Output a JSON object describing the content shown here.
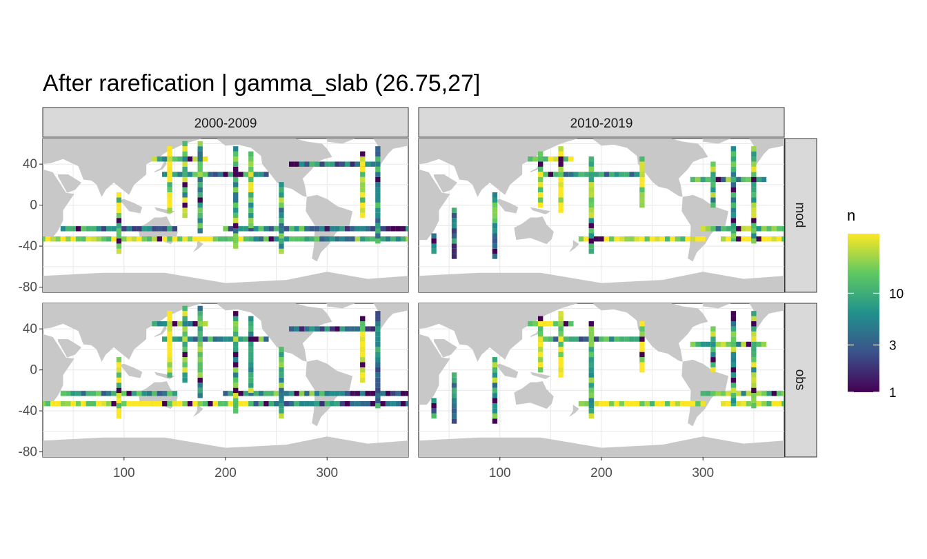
{
  "chart_data": {
    "type": "heatmap",
    "title": "After rarefication | gamma_slab (26.75,27]",
    "xlabel": "",
    "ylabel": "",
    "x_range": [
      20,
      380
    ],
    "y_range": [
      -85,
      65
    ],
    "x_ticks": [
      100,
      200,
      300
    ],
    "y_ticks": [
      40,
      0,
      -40,
      -80
    ],
    "grid": true,
    "facet_columns": [
      "2000-2009",
      "2010-2019"
    ],
    "facet_rows": [
      "mod",
      "obs"
    ],
    "legend": {
      "title": "n",
      "position": "right",
      "scale": "log10",
      "palette": "viridis",
      "ticks": [
        1,
        3,
        10
      ],
      "range": [
        1,
        40
      ]
    },
    "colors": {
      "land": "#c8c8c8",
      "strip": "#d9d9d9",
      "viridis": [
        "#440154",
        "#3b528b",
        "#21918c",
        "#5ec962",
        "#fde725"
      ]
    },
    "cell_size_deg": [
      5,
      5
    ],
    "panels": [
      {
        "period": "2000-2009",
        "source": "mod",
        "tracks": [
          {
            "lon": [
              20,
              130
            ],
            "lat": [
              -33,
              -33
            ],
            "n_base": 30
          },
          {
            "lon": [
              130,
              230
            ],
            "lat": [
              -33,
              -33
            ],
            "n_base": 28
          },
          {
            "lon": [
              230,
              380
            ],
            "lat": [
              -33,
              -33
            ],
            "n_base": 8
          },
          {
            "lon": [
              40,
              150
            ],
            "lat": [
              -23,
              -23
            ],
            "n_base": 5
          },
          {
            "lon": [
              200,
              300
            ],
            "lat": [
              -23,
              -23
            ],
            "n_base": 6
          },
          {
            "lon": [
              300,
              380
            ],
            "lat": [
              -23,
              -23
            ],
            "n_base": 3
          },
          {
            "lon": [
              130,
              180
            ],
            "lat": [
              45,
              45
            ],
            "n_base": 12
          },
          {
            "lon": [
              140,
              240
            ],
            "lat": [
              30,
              30
            ],
            "n_base": 6
          },
          {
            "lon": [
              265,
              345
            ],
            "lat": [
              40,
              40
            ],
            "n_base": 4
          },
          {
            "lon": [
              95,
              95
            ],
            "lat": [
              -45,
              10
            ],
            "n_base": 20
          },
          {
            "lon": [
              145,
              145
            ],
            "lat": [
              -5,
              55
            ],
            "n_base": 25
          },
          {
            "lon": [
              160,
              160
            ],
            "lat": [
              -10,
              60
            ],
            "n_base": 12
          },
          {
            "lon": [
              175,
              175
            ],
            "lat": [
              -25,
              60
            ],
            "n_base": 8
          },
          {
            "lon": [
              210,
              210
            ],
            "lat": [
              -40,
              55
            ],
            "n_base": 10
          },
          {
            "lon": [
              225,
              225
            ],
            "lat": [
              -20,
              50
            ],
            "n_base": 14
          },
          {
            "lon": [
              255,
              255
            ],
            "lat": [
              -45,
              20
            ],
            "n_base": 9
          },
          {
            "lon": [
              335,
              335
            ],
            "lat": [
              -10,
              50
            ],
            "n_base": 30
          },
          {
            "lon": [
              350,
              350
            ],
            "lat": [
              -35,
              55
            ],
            "n_base": 5
          }
        ]
      },
      {
        "period": "2010-2019",
        "source": "mod",
        "tracks": [
          {
            "lon": [
              180,
              300
            ],
            "lat": [
              -33,
              -33
            ],
            "n_base": 30
          },
          {
            "lon": [
              320,
              380
            ],
            "lat": [
              -33,
              -33
            ],
            "n_base": 30
          },
          {
            "lon": [
              300,
              380
            ],
            "lat": [
              -23,
              -23
            ],
            "n_base": 10
          },
          {
            "lon": [
              130,
              170
            ],
            "lat": [
              45,
              45
            ],
            "n_base": 30
          },
          {
            "lon": [
              140,
              240
            ],
            "lat": [
              30,
              30
            ],
            "n_base": 5
          },
          {
            "lon": [
              290,
              360
            ],
            "lat": [
              25,
              25
            ],
            "n_base": 8
          },
          {
            "lon": [
              35,
              35
            ],
            "lat": [
              -45,
              -30
            ],
            "n_base": 3
          },
          {
            "lon": [
              55,
              55
            ],
            "lat": [
              -50,
              -5
            ],
            "n_base": 4
          },
          {
            "lon": [
              95,
              95
            ],
            "lat": [
              -50,
              10
            ],
            "n_base": 7
          },
          {
            "lon": [
              140,
              140
            ],
            "lat": [
              0,
              50
            ],
            "n_base": 30
          },
          {
            "lon": [
              160,
              160
            ],
            "lat": [
              -5,
              55
            ],
            "n_base": 30
          },
          {
            "lon": [
              190,
              190
            ],
            "lat": [
              -45,
              45
            ],
            "n_base": 14
          },
          {
            "lon": [
              240,
              240
            ],
            "lat": [
              0,
              45
            ],
            "n_base": 25
          },
          {
            "lon": [
              330,
              330
            ],
            "lat": [
              -30,
              55
            ],
            "n_base": 9
          },
          {
            "lon": [
              350,
              350
            ],
            "lat": [
              -35,
              55
            ],
            "n_base": 12
          },
          {
            "lon": [
              310,
              310
            ],
            "lat": [
              0,
              40
            ],
            "n_base": 10
          }
        ]
      },
      {
        "period": "2000-2009",
        "source": "obs",
        "tracks": [
          {
            "lon": [
              20,
              130
            ],
            "lat": [
              -33,
              -33
            ],
            "n_base": 30
          },
          {
            "lon": [
              130,
              230
            ],
            "lat": [
              -33,
              -33
            ],
            "n_base": 28
          },
          {
            "lon": [
              230,
              380
            ],
            "lat": [
              -33,
              -33
            ],
            "n_base": 4
          },
          {
            "lon": [
              40,
              150
            ],
            "lat": [
              -23,
              -23
            ],
            "n_base": 6
          },
          {
            "lon": [
              200,
              300
            ],
            "lat": [
              -23,
              -23
            ],
            "n_base": 8
          },
          {
            "lon": [
              300,
              380
            ],
            "lat": [
              -23,
              -23
            ],
            "n_base": 2
          },
          {
            "lon": [
              130,
              180
            ],
            "lat": [
              45,
              45
            ],
            "n_base": 12
          },
          {
            "lon": [
              140,
              240
            ],
            "lat": [
              30,
              30
            ],
            "n_base": 7
          },
          {
            "lon": [
              265,
              345
            ],
            "lat": [
              40,
              40
            ],
            "n_base": 3
          },
          {
            "lon": [
              95,
              95
            ],
            "lat": [
              -45,
              10
            ],
            "n_base": 25
          },
          {
            "lon": [
              145,
              145
            ],
            "lat": [
              -5,
              55
            ],
            "n_base": 25
          },
          {
            "lon": [
              160,
              160
            ],
            "lat": [
              -10,
              60
            ],
            "n_base": 14
          },
          {
            "lon": [
              175,
              175
            ],
            "lat": [
              -25,
              60
            ],
            "n_base": 9
          },
          {
            "lon": [
              210,
              210
            ],
            "lat": [
              -40,
              55
            ],
            "n_base": 12
          },
          {
            "lon": [
              225,
              225
            ],
            "lat": [
              -20,
              50
            ],
            "n_base": 12
          },
          {
            "lon": [
              255,
              255
            ],
            "lat": [
              -45,
              20
            ],
            "n_base": 10
          },
          {
            "lon": [
              335,
              335
            ],
            "lat": [
              -10,
              50
            ],
            "n_base": 30
          },
          {
            "lon": [
              350,
              350
            ],
            "lat": [
              -35,
              55
            ],
            "n_base": 4
          }
        ]
      },
      {
        "period": "2010-2019",
        "source": "obs",
        "tracks": [
          {
            "lon": [
              180,
              300
            ],
            "lat": [
              -33,
              -33
            ],
            "n_base": 30
          },
          {
            "lon": [
              320,
              380
            ],
            "lat": [
              -33,
              -33
            ],
            "n_base": 25
          },
          {
            "lon": [
              300,
              380
            ],
            "lat": [
              -23,
              -23
            ],
            "n_base": 12
          },
          {
            "lon": [
              130,
              170
            ],
            "lat": [
              45,
              45
            ],
            "n_base": 30
          },
          {
            "lon": [
              140,
              240
            ],
            "lat": [
              30,
              30
            ],
            "n_base": 6
          },
          {
            "lon": [
              290,
              360
            ],
            "lat": [
              25,
              25
            ],
            "n_base": 10
          },
          {
            "lon": [
              35,
              35
            ],
            "lat": [
              -45,
              -30
            ],
            "n_base": 4
          },
          {
            "lon": [
              55,
              55
            ],
            "lat": [
              -50,
              -5
            ],
            "n_base": 5
          },
          {
            "lon": [
              95,
              95
            ],
            "lat": [
              -50,
              10
            ],
            "n_base": 9
          },
          {
            "lon": [
              140,
              140
            ],
            "lat": [
              0,
              50
            ],
            "n_base": 30
          },
          {
            "lon": [
              160,
              160
            ],
            "lat": [
              -5,
              55
            ],
            "n_base": 30
          },
          {
            "lon": [
              190,
              190
            ],
            "lat": [
              -45,
              45
            ],
            "n_base": 12
          },
          {
            "lon": [
              240,
              240
            ],
            "lat": [
              0,
              45
            ],
            "n_base": 25
          },
          {
            "lon": [
              330,
              330
            ],
            "lat": [
              -30,
              55
            ],
            "n_base": 10
          },
          {
            "lon": [
              350,
              350
            ],
            "lat": [
              -35,
              55
            ],
            "n_base": 14
          },
          {
            "lon": [
              310,
              310
            ],
            "lat": [
              0,
              40
            ],
            "n_base": 12
          }
        ]
      }
    ]
  }
}
